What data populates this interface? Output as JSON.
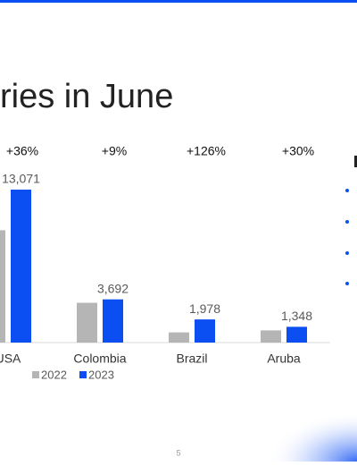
{
  "chart_data": {
    "type": "bar",
    "title": "ries in June",
    "categories": [
      "USA",
      "Colombia",
      "Brazil",
      "Aruba"
    ],
    "annotations": [
      "+36%",
      "+9%",
      "+126%",
      "+30%"
    ],
    "series": [
      {
        "name": "2022",
        "color": "#b5b5b5",
        "values": [
          9600,
          3400,
          870,
          1040
        ]
      },
      {
        "name": "2023",
        "color": "#0b4ff2",
        "values": [
          13071,
          3692,
          1978,
          1348
        ],
        "value_labels": [
          "13,071",
          "3,692",
          "1,978",
          "1,348"
        ]
      }
    ]
  },
  "page_number": "5"
}
